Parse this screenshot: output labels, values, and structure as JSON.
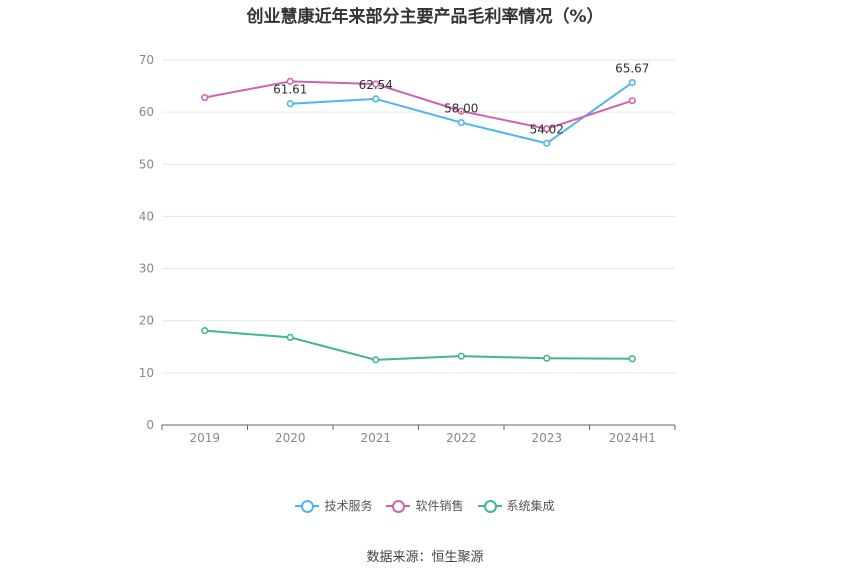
{
  "title": "创业慧康近年来部分主要产品毛利率情况（%）",
  "source": "数据来源：恒生聚源",
  "chart_data": {
    "type": "line",
    "categories": [
      "2019",
      "2020",
      "2021",
      "2022",
      "2023",
      "2024H1"
    ],
    "ylim": [
      0,
      70
    ],
    "yticks": [
      0,
      10,
      20,
      30,
      40,
      50,
      60,
      70
    ],
    "grid": true,
    "legend_position": "bottom",
    "series": [
      {
        "name": "技术服务",
        "color": "#4db6ec",
        "values": [
          null,
          61.61,
          62.54,
          58.0,
          54.02,
          65.67
        ],
        "labels": [
          null,
          "61.61",
          "62.54",
          "58.00",
          "54.02",
          "65.67"
        ]
      },
      {
        "name": "软件销售",
        "color": "#d162b0",
        "values": [
          62.8,
          65.9,
          65.4,
          60.2,
          56.8,
          62.2
        ],
        "labels": [
          null,
          null,
          null,
          null,
          null,
          null
        ]
      },
      {
        "name": "系统集成",
        "color": "#45b494",
        "values": [
          18.1,
          16.8,
          12.5,
          13.2,
          12.8,
          12.7
        ],
        "labels": [
          null,
          null,
          null,
          null,
          null,
          null
        ]
      }
    ]
  }
}
